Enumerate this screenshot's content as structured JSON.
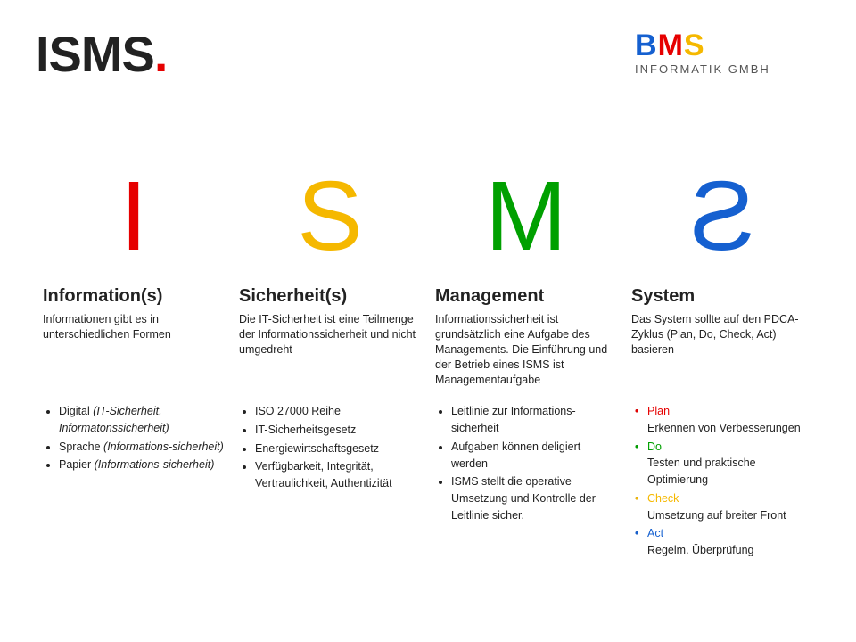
{
  "title_main": "ISMS",
  "title_dot": ".",
  "logo": {
    "b": "B",
    "m": "M",
    "s": "S",
    "sub": "INFORMATIK GMBH",
    "color_b": "#1560d0",
    "color_m": "#e60000",
    "color_s": "#f5b800"
  },
  "colors": {
    "I": "#e60000",
    "S": "#f5b800",
    "M": "#00a000",
    "S2": "#1560d0"
  },
  "cols": [
    {
      "letter": "I",
      "flip": false,
      "head": "Information(s)",
      "desc": "Informationen gibt es in unterschiedlichen Formen",
      "bullets_html": "<li>Digital <span class=\"em\">(IT-Sicherheit, Informatonssicherheit)</span></li><li>Sprache <span class=\"em\">(Informations-sicherheit)</span></li><li>Papier <span class=\"em\">(Informations-sicherheit)</span></li>"
    },
    {
      "letter": "S",
      "flip": false,
      "head": "Sicherheit(s)",
      "desc": "Die IT-Sicherheit ist eine Teilmenge der Informationssicherheit und nicht umgedreht",
      "bullets_html": "<li>ISO 27000 Reihe</li><li>IT-Sicherheitsgesetz</li><li>Energiewirtschaftsgesetz</li><li>Verfügbarkeit, Integrität, Vertraulichkeit, Authentizität</li>"
    },
    {
      "letter": "M",
      "flip": false,
      "head": "Management",
      "desc": "Informationssicherheit ist grundsätzlich eine Aufgabe des Managements. Die Einführung und der Betrieb eines ISMS ist Managementaufgabe",
      "bullets_html": "<li>Leitlinie zur Informations-sicherheit</li><li>Aufgaben können deligiert werden</li><li>ISMS stellt die operative Umsetzung und Kontrolle der Leitlinie sicher.</li>"
    },
    {
      "letter": "S",
      "flip": true,
      "head": "System",
      "desc": "Das System sollte auf den PDCA-Zyklus (Plan, Do, Check, Act) basieren",
      "pdca": [
        {
          "k": "Plan",
          "v": "Erkennen von Verbesserungen",
          "c": "#e60000"
        },
        {
          "k": "Do",
          "v": "Testen und praktische Optimierung",
          "c": "#00a000"
        },
        {
          "k": "Check",
          "v": "Umsetzung auf breiter Front",
          "c": "#f5b800"
        },
        {
          "k": "Act",
          "v": "Regelm. Überprüfung",
          "c": "#1560d0"
        }
      ]
    }
  ]
}
